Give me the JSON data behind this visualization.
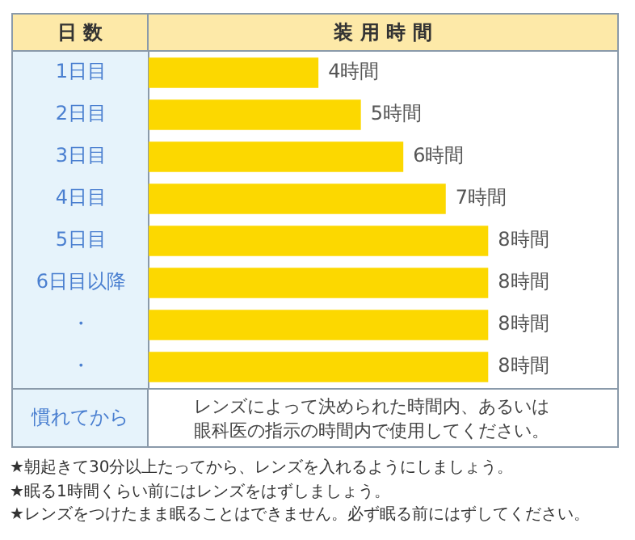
{
  "chart_data": {
    "type": "bar",
    "orientation": "horizontal",
    "tick_labels": "y",
    "ylabel": "日 数",
    "xlabel": "装 用 時 間",
    "categories": [
      "1日目",
      "2日目",
      "3日目",
      "4日目",
      "5日目",
      "6日目以降",
      "・",
      "・"
    ],
    "values": [
      4,
      5,
      6,
      7,
      8,
      8,
      8,
      8
    ],
    "value_labels": [
      "4時間",
      "5時間",
      "6時間",
      "7時間",
      "8時間",
      "8時間",
      "8時間",
      "8時間"
    ],
    "color": "#fcd800",
    "legend": false,
    "annotations": [
      "慣れてから",
      "レンズによって決められた時間内、あるいは眼科医の指示の時間内で使用してください。",
      "★朝起きて30分以上たってから、レンズを入れるようにしましょう。",
      "★眠る1時間くらい前にはレンズをはずしましょう。",
      "★レンズをつけたまま眠ることはできません。必ず眠る前にはずしてください。"
    ]
  }
}
